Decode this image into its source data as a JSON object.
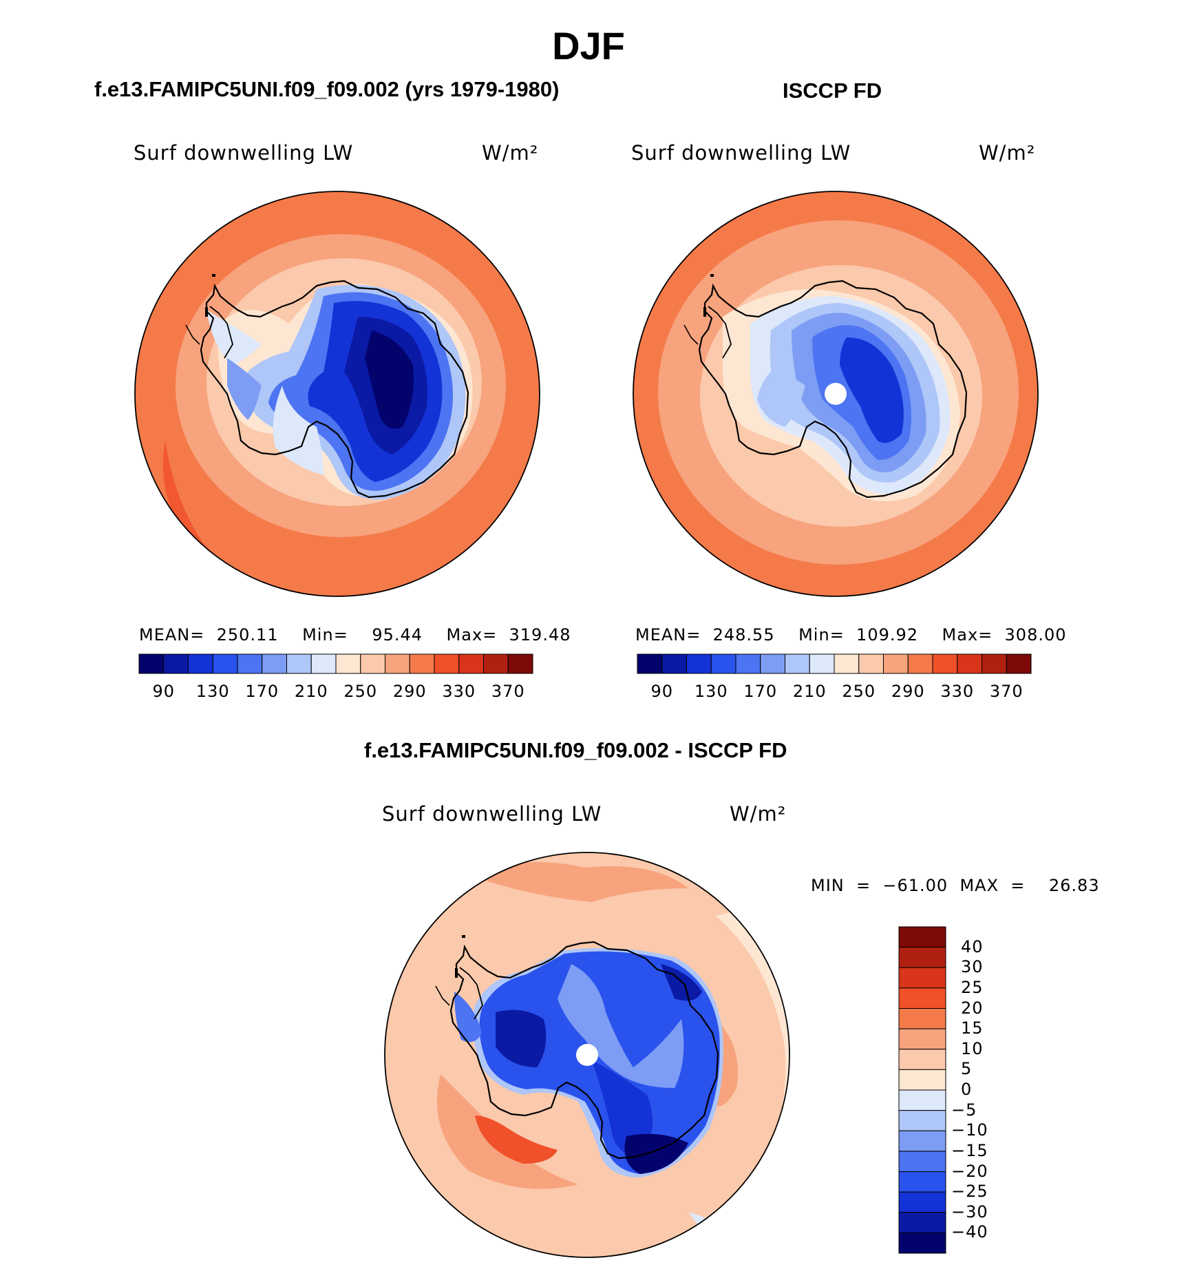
{
  "title": "DJF",
  "panels": [
    {
      "title": "f.e13.FAMIPC5UNI.f09_f09.002 (yrs 1979-1980)",
      "variable": "Surf downwelling LW",
      "units": "W/m²",
      "stats": "MEAN=  250.11    Min=    95.44    Max=  319.48"
    },
    {
      "title": "ISCCP FD",
      "variable": "Surf downwelling LW",
      "units": "W/m²",
      "stats": "MEAN=  248.55    Min=  109.92    Max=  308.00"
    },
    {
      "title": "f.e13.FAMIPC5UNI.f09_f09.002 - ISCCP FD",
      "variable": "Surf downwelling LW",
      "units": "W/m²",
      "stats": "MIN  =  −61.00  MAX  =    26.83"
    }
  ],
  "abs_colorbar": {
    "labels": [
      "90",
      "130",
      "170",
      "210",
      "250",
      "290",
      "330",
      "370"
    ],
    "colors": [
      "#03036e",
      "#0a1aa5",
      "#1433d6",
      "#2a52ec",
      "#4d74f2",
      "#7d9df5",
      "#aec6f8",
      "#dde8fb",
      "#fde6d2",
      "#fbc9ab",
      "#f7a37d",
      "#f57a4a",
      "#f0502a",
      "#d8351a",
      "#b02010",
      "#7d0a06"
    ]
  },
  "diff_colorbar": {
    "labels": [
      "40",
      "30",
      "25",
      "20",
      "15",
      "10",
      "5",
      "0",
      "−5",
      "−10",
      "−15",
      "−20",
      "−25",
      "−30",
      "−40"
    ],
    "colors": [
      "#7d0a06",
      "#b02010",
      "#d8351a",
      "#f0502a",
      "#f57a4a",
      "#f7a37d",
      "#fbc9ab",
      "#fde6d2",
      "#dde8fb",
      "#aec6f8",
      "#7d9df5",
      "#4d74f2",
      "#2a52ec",
      "#1433d6",
      "#0a1aa5",
      "#03036e"
    ]
  },
  "map_palette": {
    "ocean_warm": "#f57a4a",
    "ocean_mid": "#f7a37d",
    "ocean_light": "#fbc9ab",
    "coast_pale": "#fde6d2",
    "ice_edge": "#aec6f8",
    "ice_mid": "#4d74f2",
    "ice_deep": "#1433d6",
    "ice_core": "#0a1aa5",
    "ice_min": "#03036e"
  }
}
